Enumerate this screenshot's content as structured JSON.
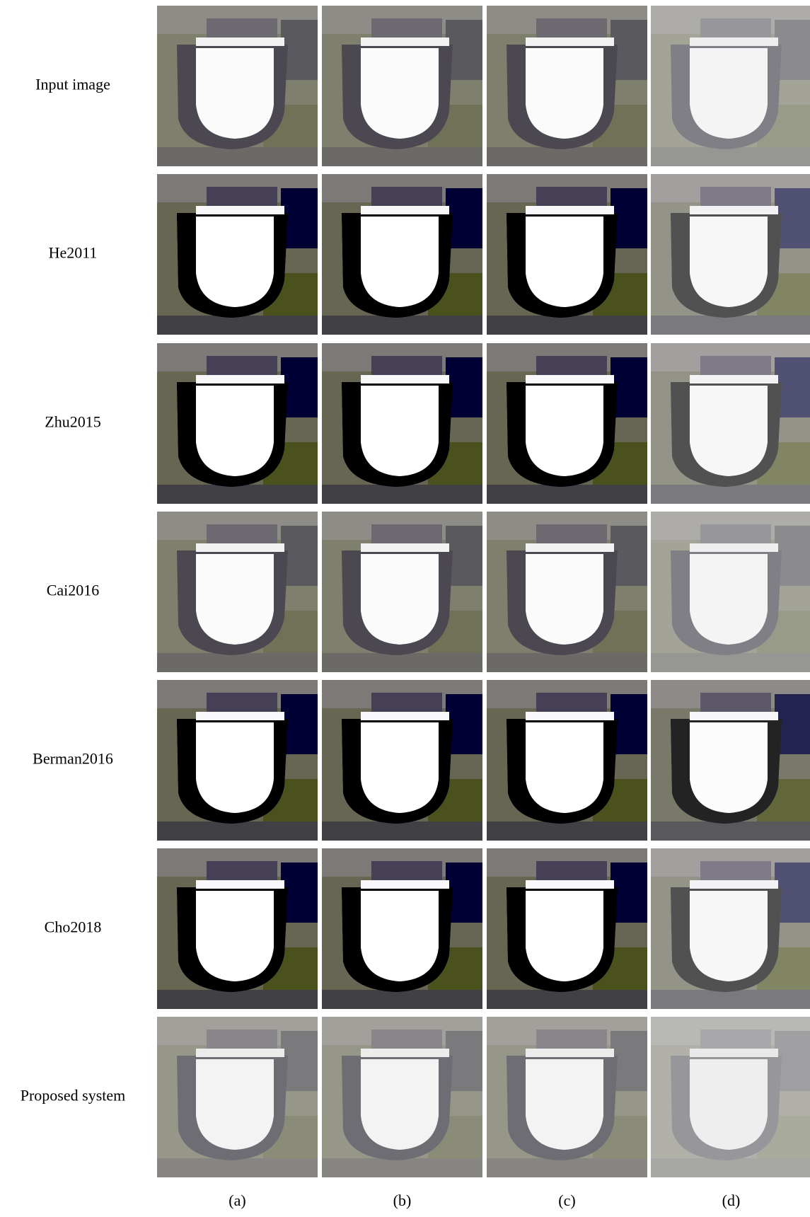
{
  "row_labels": [
    "Input image",
    "He2011",
    "Zhu2015",
    "Cai2016",
    "Berman2016",
    "Cho2018",
    "Proposed system"
  ],
  "column_labels": [
    "(a)",
    "(b)",
    "(c)",
    "(d)"
  ]
}
